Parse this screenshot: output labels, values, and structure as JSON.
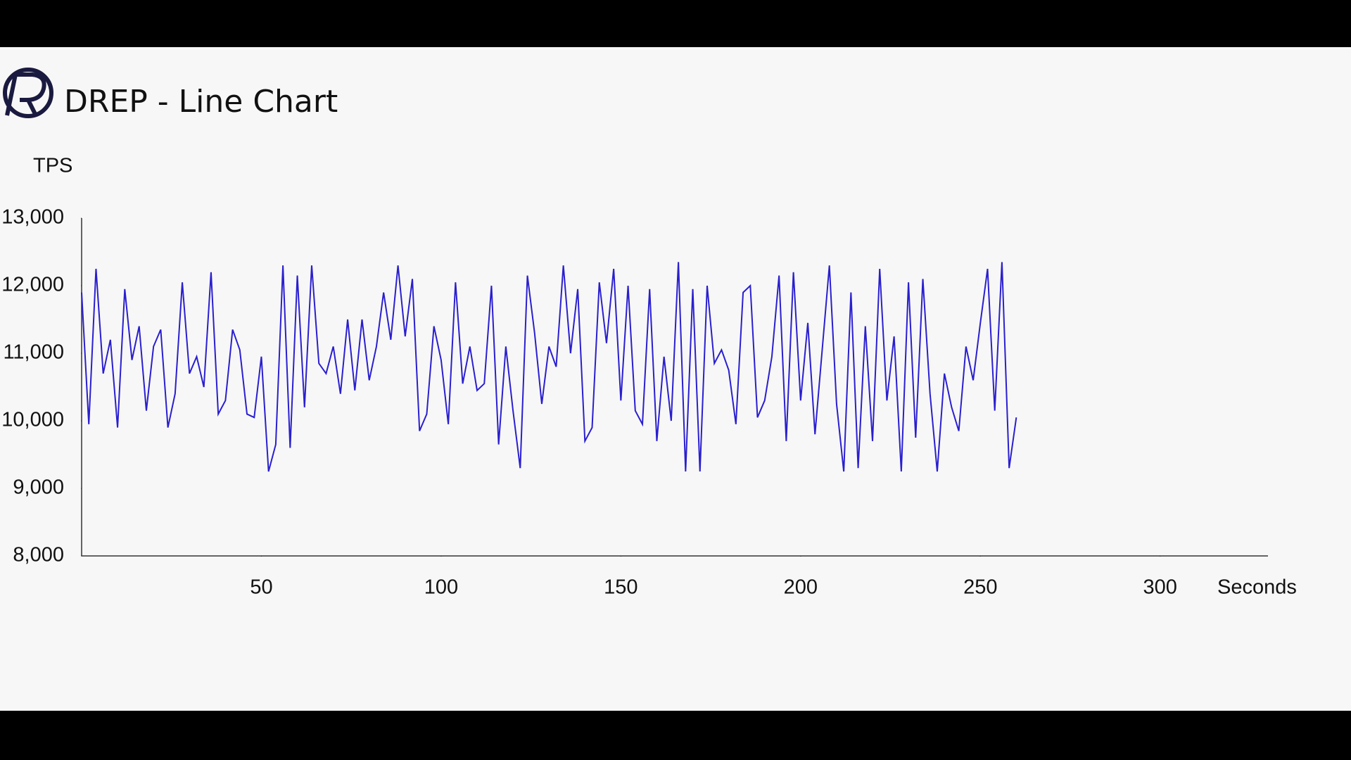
{
  "chart_data": {
    "type": "line",
    "title": "DREP - Line Chart",
    "y_label": "TPS",
    "x_label": "Seconds",
    "x": [
      0,
      2,
      4,
      6,
      8,
      10,
      12,
      14,
      16,
      18,
      20,
      22,
      24,
      26,
      28,
      30,
      32,
      34,
      36,
      38,
      40,
      42,
      44,
      46,
      48,
      50,
      52,
      54,
      56,
      58,
      60,
      62,
      64,
      66,
      68,
      70,
      72,
      74,
      76,
      78,
      80,
      82,
      84,
      86,
      88,
      90,
      92,
      94,
      96,
      98,
      100,
      102,
      104,
      106,
      108,
      110,
      112,
      114,
      116,
      118,
      120,
      122,
      124,
      126,
      128,
      130,
      132,
      134,
      136,
      138,
      140,
      142,
      144,
      146,
      148,
      150,
      152,
      154,
      156,
      158,
      160,
      162,
      164,
      166,
      168,
      170,
      172,
      174,
      176,
      178,
      180,
      182,
      184,
      186,
      188,
      190,
      192,
      194,
      196,
      198,
      200,
      202,
      204,
      206,
      208,
      210,
      212,
      214,
      216,
      218,
      220,
      222,
      224,
      226,
      228,
      230,
      232,
      234,
      236,
      238,
      240,
      242,
      244,
      246,
      248,
      250,
      252,
      254,
      256,
      258,
      260
    ],
    "series": [
      {
        "color": "#2a1fcf",
        "values": [
          11900,
          9950,
          12250,
          10700,
          11200,
          9900,
          11950,
          10900,
          11400,
          10150,
          11100,
          11350,
          9900,
          10400,
          12050,
          10700,
          10950,
          10500,
          12200,
          10100,
          10300,
          11350,
          11050,
          10100,
          10050,
          10950,
          9250,
          9650,
          12300,
          9600,
          12150,
          10200,
          12300,
          10850,
          10700,
          11100,
          10400,
          11500,
          10450,
          11500,
          10600,
          11100,
          11900,
          11200,
          12300,
          11250,
          12100,
          9850,
          10100,
          11400,
          10900,
          9950,
          12050,
          10550,
          11100,
          10450,
          10550,
          12000,
          9650,
          11100,
          10150,
          9300,
          12150,
          11300,
          10250,
          11100,
          10800,
          12300,
          11000,
          11950,
          9700,
          9900,
          12050,
          11150,
          12250,
          10300,
          12000,
          10150,
          9950,
          11950,
          9700,
          10950,
          10000,
          12350,
          9250,
          11950,
          9250,
          12000,
          10850,
          11050,
          10750,
          9950,
          11900,
          12000,
          10050,
          10300,
          10950,
          12150,
          9700,
          12200,
          10300,
          11450,
          9800,
          11050,
          12300,
          10250,
          9250,
          11900,
          9300,
          11400,
          9700,
          12250,
          10300,
          11250,
          9250,
          12050,
          9750,
          12100,
          10400,
          9250,
          10700,
          10200,
          9850,
          11100,
          10600,
          11450,
          12250,
          10150,
          12350,
          9300,
          10050
        ]
      }
    ],
    "xlim": [
      0,
      330
    ],
    "xticks": [
      50,
      100,
      150,
      200,
      250,
      300
    ],
    "ylim": [
      8000,
      13000
    ],
    "yticks": [
      {
        "value": 8000,
        "label": "8,000"
      },
      {
        "value": 9000,
        "label": "9,000"
      },
      {
        "value": 10000,
        "label": "10,000"
      },
      {
        "value": 11000,
        "label": "11,000"
      },
      {
        "value": 12000,
        "label": "12,000"
      },
      {
        "value": 13000,
        "label": "13,000"
      }
    ],
    "grid": false
  }
}
